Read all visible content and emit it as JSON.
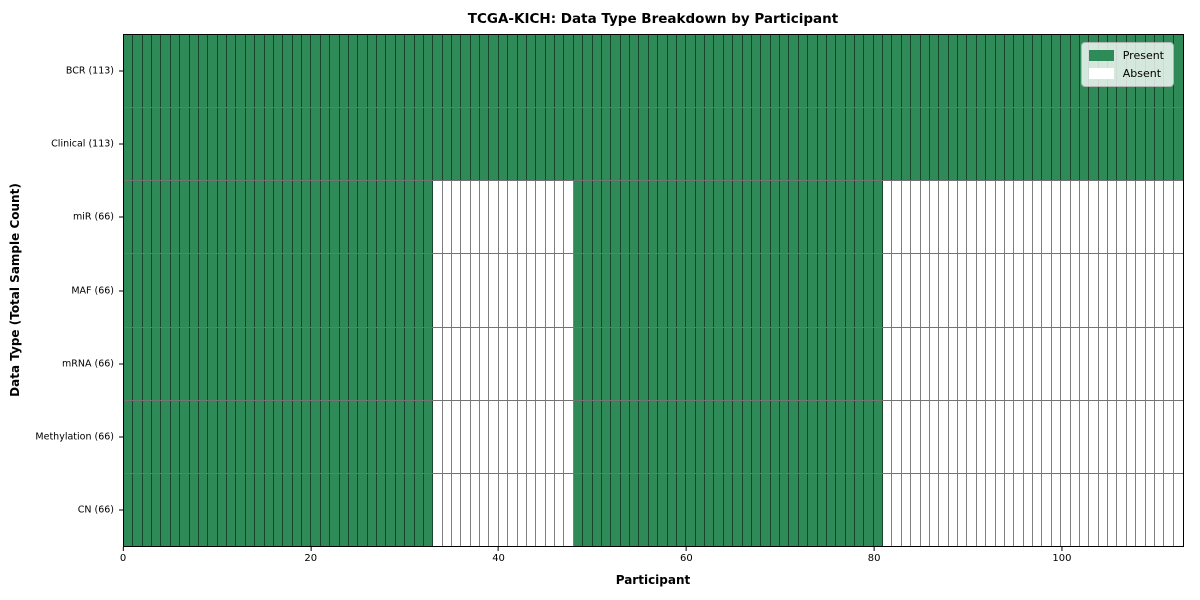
{
  "figure": {
    "title": "TCGA-KICH: Data Type Breakdown by Participant",
    "xlabel": "Participant",
    "ylabel": "Data Type (Total Sample Count)"
  },
  "chart_data": {
    "type": "heatmap",
    "title": "TCGA-KICH: Data Type Breakdown by Participant",
    "xlabel": "Participant",
    "ylabel": "Data Type (Total Sample Count)",
    "n_participants": 113,
    "x_ticks": [
      0,
      20,
      40,
      60,
      80,
      100
    ],
    "rows": [
      {
        "label": "BCR (113)",
        "total_samples": 113,
        "present_ranges": [
          [
            0,
            113
          ]
        ]
      },
      {
        "label": "Clinical (113)",
        "total_samples": 113,
        "present_ranges": [
          [
            0,
            113
          ]
        ]
      },
      {
        "label": "miR (66)",
        "total_samples": 66,
        "present_ranges": [
          [
            0,
            33
          ],
          [
            48,
            81
          ]
        ]
      },
      {
        "label": "MAF (66)",
        "total_samples": 66,
        "present_ranges": [
          [
            0,
            33
          ],
          [
            48,
            81
          ]
        ]
      },
      {
        "label": "mRNA (66)",
        "total_samples": 66,
        "present_ranges": [
          [
            0,
            33
          ],
          [
            48,
            81
          ]
        ]
      },
      {
        "label": "Methylation (66)",
        "total_samples": 66,
        "present_ranges": [
          [
            0,
            33
          ],
          [
            48,
            81
          ]
        ]
      },
      {
        "label": "CN (66)",
        "total_samples": 66,
        "present_ranges": [
          [
            0,
            33
          ],
          [
            48,
            81
          ]
        ]
      }
    ],
    "colors": {
      "present": "#2e8b57",
      "absent": "#ffffff"
    },
    "legend": [
      {
        "label": "Present",
        "color": "#2e8b57"
      },
      {
        "label": "Absent",
        "color": "#ffffff"
      }
    ],
    "legend_position": "upper right",
    "grid": false
  }
}
